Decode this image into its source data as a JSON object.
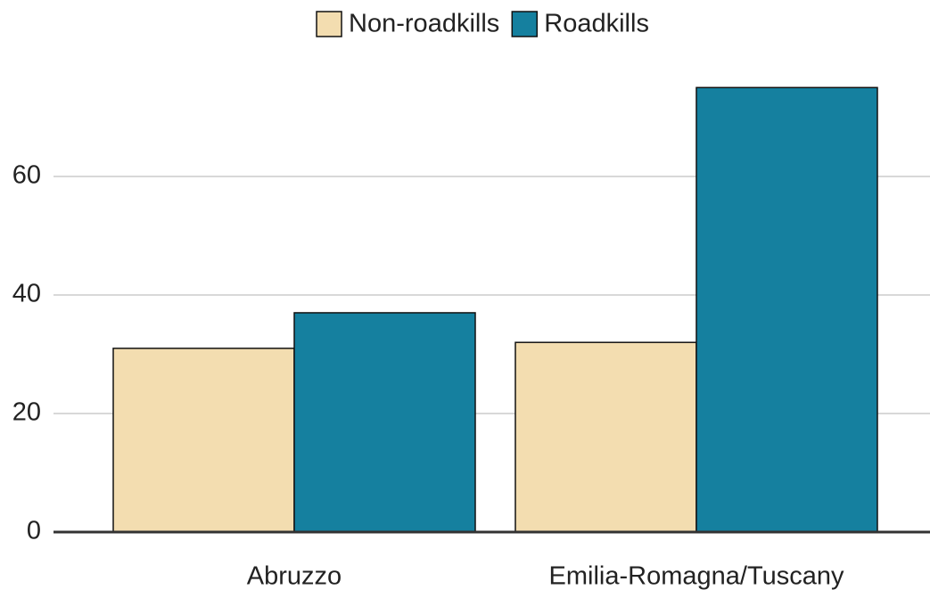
{
  "chart_data": {
    "type": "bar",
    "categories": [
      "Abruzzo",
      "Emilia-Romagna/Tuscany"
    ],
    "series": [
      {
        "name": "Non-roadkills",
        "color": "#f3ddb0",
        "values": [
          31,
          32
        ]
      },
      {
        "name": "Roadkills",
        "color": "#15809f",
        "values": [
          37,
          75
        ]
      }
    ],
    "ylim": [
      0,
      80
    ],
    "yticks": [
      0,
      20,
      40,
      60
    ],
    "grid": true
  }
}
